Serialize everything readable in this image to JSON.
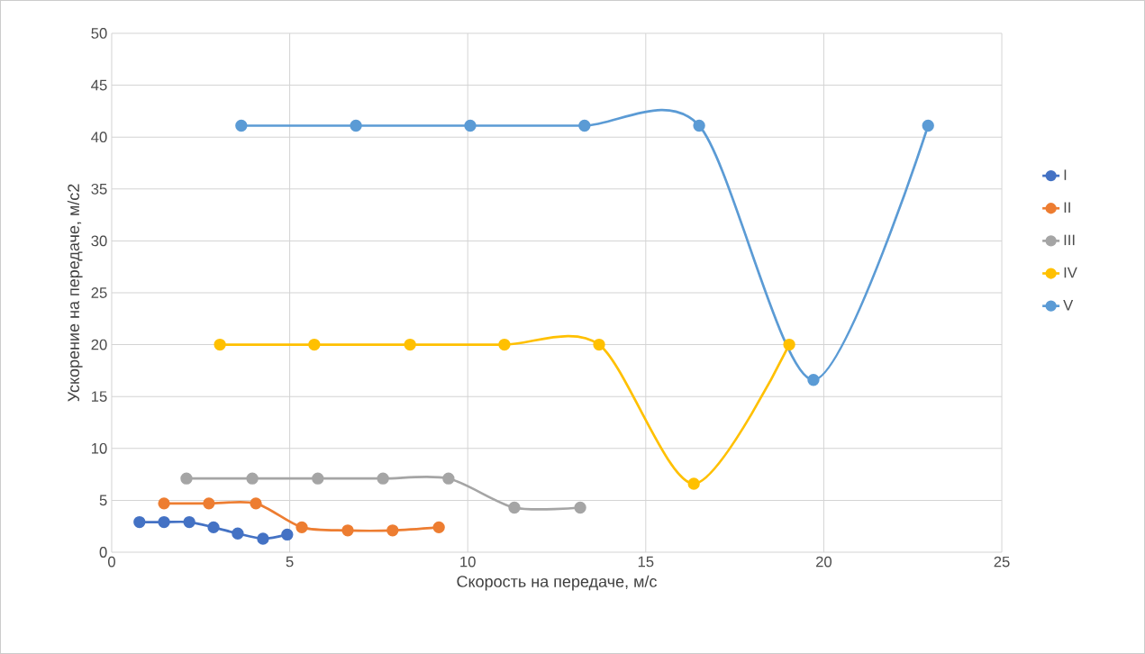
{
  "chart_data": {
    "type": "line",
    "xlabel": "Скорость на передаче, м/с",
    "ylabel": "Ускорение на передаче, м/с2",
    "xlim": [
      0,
      25
    ],
    "ylim": [
      0,
      50
    ],
    "xticks": [
      0,
      5,
      10,
      15,
      20,
      25
    ],
    "yticks": [
      0,
      5,
      10,
      15,
      20,
      25,
      30,
      35,
      40,
      45,
      50
    ],
    "grid": true,
    "legend": "right",
    "marker": "circle",
    "line_style": "solid",
    "series": [
      {
        "name": "I",
        "color": "#4472c4",
        "x": [
          0.78,
          1.47,
          2.18,
          2.86,
          3.54,
          4.25,
          4.93
        ],
        "values": [
          2.9,
          2.9,
          2.9,
          2.4,
          1.8,
          1.3,
          1.7
        ]
      },
      {
        "name": "II",
        "color": "#ed7d31",
        "x": [
          1.47,
          2.73,
          4.05,
          5.34,
          6.63,
          7.89,
          9.19
        ],
        "values": [
          4.7,
          4.7,
          4.7,
          2.4,
          2.1,
          2.1,
          2.4
        ]
      },
      {
        "name": "III",
        "color": "#a5a5a5",
        "x": [
          2.1,
          3.95,
          5.79,
          7.62,
          9.46,
          11.31,
          13.16
        ],
        "values": [
          7.1,
          7.1,
          7.1,
          7.1,
          7.1,
          4.3,
          4.3
        ]
      },
      {
        "name": "IV",
        "color": "#ffc000",
        "x": [
          3.04,
          5.69,
          8.38,
          11.03,
          13.69,
          16.35,
          19.03
        ],
        "values": [
          20,
          20,
          20,
          20,
          20,
          6.6,
          20
        ]
      },
      {
        "name": "V",
        "color": "#5b9bd5",
        "x": [
          3.64,
          6.86,
          10.07,
          13.28,
          16.5,
          19.71,
          22.93
        ],
        "values": [
          41.1,
          41.1,
          41.1,
          41.1,
          41.1,
          16.6,
          41.1
        ]
      }
    ]
  }
}
